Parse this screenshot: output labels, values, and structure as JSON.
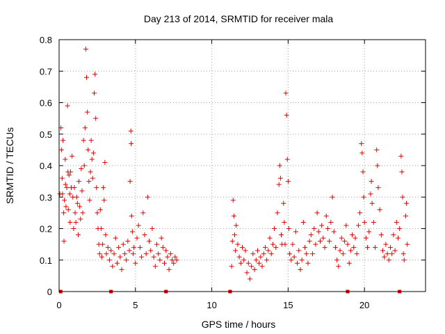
{
  "chart_data": {
    "type": "scatter",
    "title": "Day 213 of 2014, SRMTID for receiver mala",
    "xlabel": "GPS time / hours",
    "ylabel": "SRMTID / TECUs",
    "xlim": [
      0,
      24
    ],
    "ylim": [
      0,
      0.8
    ],
    "x_ticks": [
      0,
      5,
      10,
      15,
      20
    ],
    "x_tick_labels": [
      "0",
      "5",
      "10",
      "15",
      "20"
    ],
    "y_ticks": [
      0,
      0.1,
      0.2,
      0.3,
      0.4,
      0.5,
      0.6,
      0.7,
      0.8
    ],
    "y_tick_labels": [
      "0",
      "0.1",
      "0.2",
      "0.3",
      "0.4",
      "0.5",
      "0.6",
      "0.7",
      "0.8"
    ],
    "grid": true,
    "marker": "+",
    "color": "#e00000",
    "series": [
      {
        "name": "SRMTID",
        "points": [
          [
            0.05,
            0.31
          ],
          [
            0.12,
            0.52
          ],
          [
            0.15,
            0.45
          ],
          [
            0.2,
            0.36
          ],
          [
            0.22,
            0.31
          ],
          [
            0.25,
            0.48
          ],
          [
            0.3,
            0.25
          ],
          [
            0.32,
            0.16
          ],
          [
            0.35,
            0.29
          ],
          [
            0.4,
            0.42
          ],
          [
            0.42,
            0.34
          ],
          [
            0.45,
            0.27
          ],
          [
            0.5,
            0.33
          ],
          [
            0.55,
            0.59
          ],
          [
            0.58,
            0.38
          ],
          [
            0.6,
            0.26
          ],
          [
            0.65,
            0.37
          ],
          [
            0.7,
            0.31
          ],
          [
            0.72,
            0.22
          ],
          [
            0.75,
            0.38
          ],
          [
            0.8,
            0.33
          ],
          [
            0.85,
            0.43
          ],
          [
            0.9,
            0.3
          ],
          [
            0.95,
            0.2
          ],
          [
            1.0,
            0.33
          ],
          [
            1.05,
            0.25
          ],
          [
            1.1,
            0.22
          ],
          [
            1.15,
            0.3
          ],
          [
            1.2,
            0.28
          ],
          [
            1.25,
            0.18
          ],
          [
            1.3,
            0.35
          ],
          [
            1.35,
            0.27
          ],
          [
            1.4,
            0.23
          ],
          [
            1.45,
            0.39
          ],
          [
            1.5,
            0.32
          ],
          [
            1.55,
            0.25
          ],
          [
            1.6,
            0.48
          ],
          [
            1.65,
            0.4
          ],
          [
            1.7,
            0.52
          ],
          [
            1.75,
            0.77
          ],
          [
            1.8,
            0.68
          ],
          [
            1.85,
            0.57
          ],
          [
            1.9,
            0.45
          ],
          [
            1.95,
            0.35
          ],
          [
            2.0,
            0.29
          ],
          [
            2.05,
            0.38
          ],
          [
            2.1,
            0.48
          ],
          [
            2.15,
            0.42
          ],
          [
            2.2,
            0.36
          ],
          [
            2.25,
            0.44
          ],
          [
            2.3,
            0.63
          ],
          [
            2.35,
            0.69
          ],
          [
            2.4,
            0.55
          ],
          [
            2.45,
            0.33
          ],
          [
            2.5,
            0.25
          ],
          [
            2.55,
            0.2
          ],
          [
            2.6,
            0.15
          ],
          [
            2.65,
            0.12
          ],
          [
            2.7,
            0.26
          ],
          [
            2.75,
            0.2
          ],
          [
            2.8,
            0.11
          ],
          [
            2.85,
            0.15
          ],
          [
            2.9,
            0.33
          ],
          [
            2.95,
            0.29
          ],
          [
            3.0,
            0.41
          ],
          [
            3.05,
            0.18
          ],
          [
            3.1,
            0.12
          ],
          [
            3.2,
            0.14
          ],
          [
            3.3,
            0.1
          ],
          [
            3.4,
            0.13
          ],
          [
            3.5,
            0.08
          ],
          [
            3.6,
            0.12
          ],
          [
            3.7,
            0.17
          ],
          [
            3.8,
            0.09
          ],
          [
            3.9,
            0.14
          ],
          [
            4.0,
            0.11
          ],
          [
            4.1,
            0.07
          ],
          [
            4.2,
            0.15
          ],
          [
            4.3,
            0.12
          ],
          [
            4.4,
            0.1
          ],
          [
            4.5,
            0.16
          ],
          [
            4.6,
            0.13
          ],
          [
            4.65,
            0.35
          ],
          [
            4.7,
            0.51
          ],
          [
            4.72,
            0.47
          ],
          [
            4.75,
            0.24
          ],
          [
            4.8,
            0.19
          ],
          [
            4.85,
            0.12
          ],
          [
            4.9,
            0.14
          ],
          [
            5.0,
            0.09
          ],
          [
            5.1,
            0.17
          ],
          [
            5.2,
            0.21
          ],
          [
            5.3,
            0.14
          ],
          [
            5.4,
            0.11
          ],
          [
            5.5,
            0.25
          ],
          [
            5.6,
            0.18
          ],
          [
            5.7,
            0.12
          ],
          [
            5.8,
            0.3
          ],
          [
            5.9,
            0.16
          ],
          [
            6.0,
            0.13
          ],
          [
            6.1,
            0.2
          ],
          [
            6.2,
            0.11
          ],
          [
            6.3,
            0.08
          ],
          [
            6.4,
            0.15
          ],
          [
            6.5,
            0.12
          ],
          [
            6.6,
            0.1
          ],
          [
            6.7,
            0.17
          ],
          [
            6.8,
            0.14
          ],
          [
            6.9,
            0.09
          ],
          [
            7.0,
            0.13
          ],
          [
            7.1,
            0.11
          ],
          [
            7.2,
            0.07
          ],
          [
            7.3,
            0.12
          ],
          [
            7.4,
            0.1
          ],
          [
            7.5,
            0.09
          ],
          [
            7.6,
            0.11
          ],
          [
            7.7,
            0.1
          ],
          [
            11.3,
            0.08
          ],
          [
            11.35,
            0.16
          ],
          [
            11.4,
            0.29
          ],
          [
            11.45,
            0.24
          ],
          [
            11.5,
            0.18
          ],
          [
            11.55,
            0.13
          ],
          [
            11.6,
            0.21
          ],
          [
            11.7,
            0.15
          ],
          [
            11.8,
            0.11
          ],
          [
            11.9,
            0.09
          ],
          [
            12.0,
            0.14
          ],
          [
            12.1,
            0.1
          ],
          [
            12.2,
            0.13
          ],
          [
            12.3,
            0.06
          ],
          [
            12.4,
            0.09
          ],
          [
            12.5,
            0.04
          ],
          [
            12.6,
            0.08
          ],
          [
            12.7,
            0.12
          ],
          [
            12.8,
            0.07
          ],
          [
            12.9,
            0.1
          ],
          [
            13.0,
            0.13
          ],
          [
            13.1,
            0.09
          ],
          [
            13.2,
            0.11
          ],
          [
            13.3,
            0.08
          ],
          [
            13.4,
            0.12
          ],
          [
            13.5,
            0.14
          ],
          [
            13.6,
            0.1
          ],
          [
            13.7,
            0.13
          ],
          [
            13.8,
            0.17
          ],
          [
            13.9,
            0.12
          ],
          [
            14.0,
            0.15
          ],
          [
            14.1,
            0.2
          ],
          [
            14.2,
            0.14
          ],
          [
            14.3,
            0.25
          ],
          [
            14.4,
            0.34
          ],
          [
            14.45,
            0.4
          ],
          [
            14.5,
            0.36
          ],
          [
            14.55,
            0.18
          ],
          [
            14.6,
            0.15
          ],
          [
            14.7,
            0.28
          ],
          [
            14.75,
            0.22
          ],
          [
            14.8,
            0.15
          ],
          [
            14.85,
            0.63
          ],
          [
            14.9,
            0.56
          ],
          [
            14.95,
            0.42
          ],
          [
            15.0,
            0.35
          ],
          [
            15.05,
            0.2
          ],
          [
            15.1,
            0.12
          ],
          [
            15.2,
            0.1
          ],
          [
            15.3,
            0.15
          ],
          [
            15.4,
            0.11
          ],
          [
            15.5,
            0.19
          ],
          [
            15.6,
            0.09
          ],
          [
            15.7,
            0.13
          ],
          [
            15.8,
            0.07
          ],
          [
            15.9,
            0.1
          ],
          [
            16.0,
            0.22
          ],
          [
            16.1,
            0.14
          ],
          [
            16.2,
            0.12
          ],
          [
            16.3,
            0.09
          ],
          [
            16.4,
            0.16
          ],
          [
            16.5,
            0.18
          ],
          [
            16.6,
            0.12
          ],
          [
            16.7,
            0.2
          ],
          [
            16.8,
            0.15
          ],
          [
            16.9,
            0.25
          ],
          [
            17.0,
            0.19
          ],
          [
            17.1,
            0.16
          ],
          [
            17.2,
            0.21
          ],
          [
            17.3,
            0.17
          ],
          [
            17.4,
            0.14
          ],
          [
            17.5,
            0.24
          ],
          [
            17.6,
            0.2
          ],
          [
            17.7,
            0.16
          ],
          [
            17.8,
            0.22
          ],
          [
            17.9,
            0.3
          ],
          [
            18.0,
            0.19
          ],
          [
            18.1,
            0.14
          ],
          [
            18.2,
            0.1
          ],
          [
            18.3,
            0.08
          ],
          [
            18.4,
            0.13
          ],
          [
            18.5,
            0.17
          ],
          [
            18.6,
            0.12
          ],
          [
            18.7,
            0.16
          ],
          [
            18.8,
            0.21
          ],
          [
            18.9,
            0.15
          ],
          [
            19.0,
            0.09
          ],
          [
            19.1,
            0.13
          ],
          [
            19.2,
            0.18
          ],
          [
            19.3,
            0.14
          ],
          [
            19.4,
            0.17
          ],
          [
            19.5,
            0.12
          ],
          [
            19.6,
            0.21
          ],
          [
            19.7,
            0.25
          ],
          [
            19.8,
            0.47
          ],
          [
            19.85,
            0.44
          ],
          [
            19.9,
            0.38
          ],
          [
            19.95,
            0.3
          ],
          [
            20.0,
            0.22
          ],
          [
            20.1,
            0.17
          ],
          [
            20.2,
            0.14
          ],
          [
            20.3,
            0.19
          ],
          [
            20.4,
            0.31
          ],
          [
            20.45,
            0.35
          ],
          [
            20.5,
            0.28
          ],
          [
            20.6,
            0.22
          ],
          [
            20.7,
            0.14
          ],
          [
            20.8,
            0.45
          ],
          [
            20.85,
            0.4
          ],
          [
            20.9,
            0.33
          ],
          [
            21.0,
            0.26
          ],
          [
            21.1,
            0.18
          ],
          [
            21.2,
            0.13
          ],
          [
            21.3,
            0.11
          ],
          [
            21.4,
            0.15
          ],
          [
            21.5,
            0.12
          ],
          [
            21.6,
            0.1
          ],
          [
            21.7,
            0.14
          ],
          [
            21.8,
            0.12
          ],
          [
            21.9,
            0.18
          ],
          [
            22.0,
            0.13
          ],
          [
            22.1,
            0.22
          ],
          [
            22.2,
            0.17
          ],
          [
            22.3,
            0.2
          ],
          [
            22.4,
            0.43
          ],
          [
            22.45,
            0.38
          ],
          [
            22.5,
            0.3
          ],
          [
            22.55,
            0.12
          ],
          [
            22.6,
            0.1
          ],
          [
            22.7,
            0.24
          ],
          [
            22.75,
            0.28
          ],
          [
            22.8,
            0.15
          ]
        ]
      }
    ],
    "zero_markers": [
      0.1,
      3.4,
      7.0,
      11.2,
      18.9,
      22.3
    ]
  }
}
